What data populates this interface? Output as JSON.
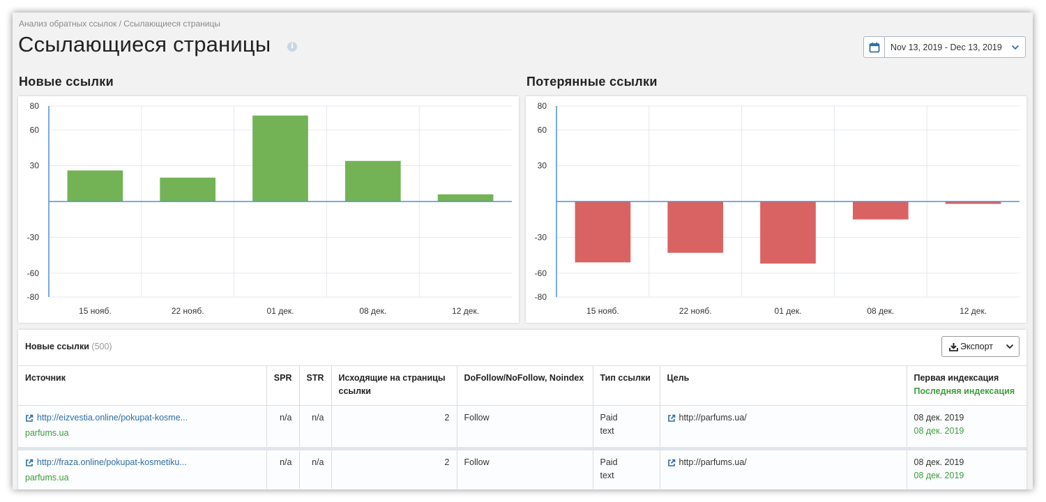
{
  "breadcrumb": {
    "parent": "Анализ обратных ссылок",
    "separator": " / ",
    "current": "Ссылающиеся страницы"
  },
  "page_title": "Ссылающиеся страницы",
  "info_icon_glyph": "i",
  "date_range": "Nov 13, 2019 - Dec 13, 2019",
  "charts": {
    "new_title": "Новые ссылки",
    "lost_title": "Потерянные ссылки"
  },
  "chart_data": [
    {
      "type": "bar",
      "title": "Новые ссылки",
      "categories": [
        "15 нояб.",
        "22 нояб.",
        "01 дек.",
        "08 дек.",
        "12 дек."
      ],
      "values": [
        26,
        20,
        72,
        34,
        6
      ],
      "ylim": [
        -80,
        80
      ],
      "yticks": [
        "80",
        "60",
        "30",
        "-30",
        "-60",
        "-80"
      ],
      "ytick_values": [
        80,
        60,
        30,
        -30,
        -60,
        -80
      ],
      "bar_color": "#73b356",
      "grid": true,
      "xlabel": "",
      "ylabel": ""
    },
    {
      "type": "bar",
      "title": "Потерянные ссылки",
      "categories": [
        "15 нояб.",
        "22 нояб.",
        "01 дек.",
        "08 дек.",
        "12 дек."
      ],
      "values": [
        -51,
        -43,
        -52,
        -15,
        -2
      ],
      "ylim": [
        -80,
        80
      ],
      "yticks": [
        "80",
        "60",
        "30",
        "-30",
        "-60",
        "-80"
      ],
      "ytick_values": [
        80,
        60,
        30,
        -30,
        -60,
        -80
      ],
      "bar_color": "#d96363",
      "grid": true,
      "xlabel": "",
      "ylabel": ""
    }
  ],
  "table": {
    "title": "Новые ссылки",
    "count": "(500)",
    "export_label": "Экспорт",
    "columns": {
      "source": "Источник",
      "spr": "SPR",
      "str": "STR",
      "outgoing": "Исходящие на страницы ссылки",
      "follow": "DoFollow/NoFollow, Noindex",
      "link_type": "Тип ссылки",
      "target": "Цель",
      "first_index": "Первая индексация",
      "last_index": "Последняя индексация"
    },
    "rows": [
      {
        "url": "http://eizvestia.online/pokupat-kosme...",
        "domain": "parfums.ua",
        "spr": "n/a",
        "str": "n/a",
        "outgoing": "2",
        "follow": "Follow",
        "type_line1": "Paid",
        "type_line2": "text",
        "target": "http://parfums.ua/",
        "first_index": "08 дек. 2019",
        "last_index": "08 дек. 2019"
      },
      {
        "url": "http://fraza.online/pokupat-kosmetiku...",
        "domain": "parfums.ua",
        "spr": "n/a",
        "str": "n/a",
        "outgoing": "2",
        "follow": "Follow",
        "type_line1": "Paid",
        "type_line2": "text",
        "target": "http://parfums.ua/",
        "first_index": "08 дек. 2019",
        "last_index": "08 дек. 2019"
      }
    ]
  },
  "colors": {
    "accent": "#2e6da4",
    "green_text": "#3d9c3d",
    "axis": "#4a90d9"
  }
}
